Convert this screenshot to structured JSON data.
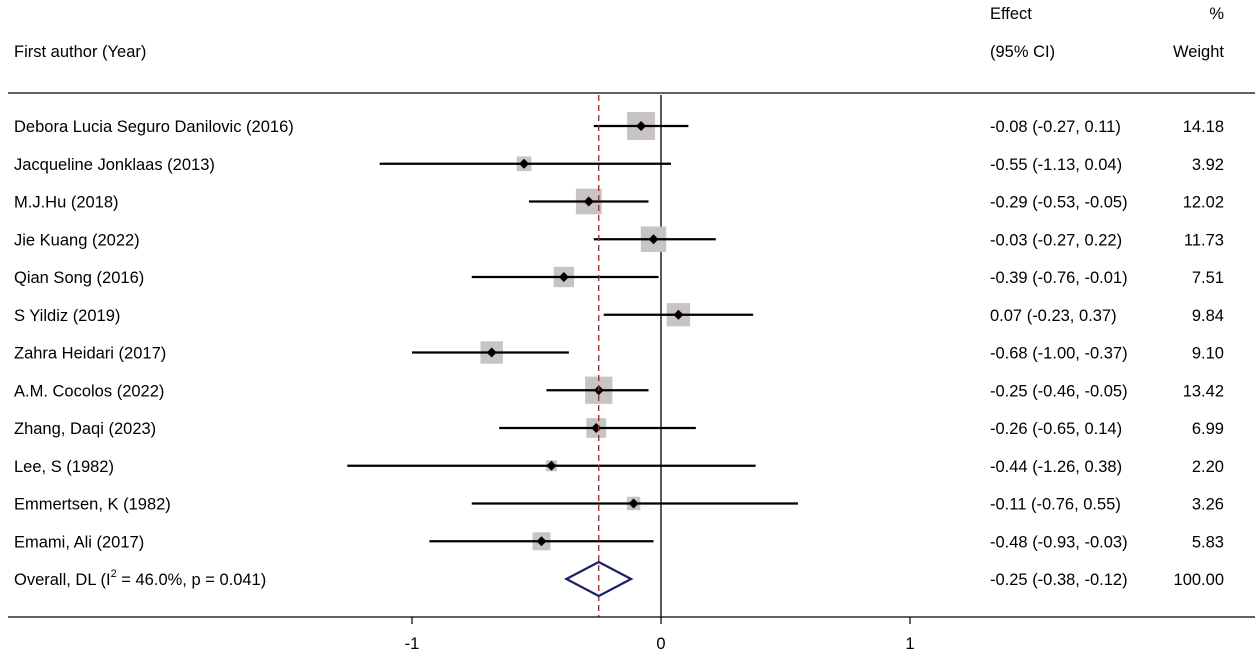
{
  "chart_data": {
    "type": "forest",
    "headers": {
      "author": "First author (Year)",
      "effect_line1": "Effect",
      "effect_line2": "(95% CI)",
      "weight_line1": "%",
      "weight_line2": "Weight"
    },
    "studies": [
      {
        "label": "Debora Lucia Seguro Danilovic (2016)",
        "effect": -0.08,
        "lower": -0.27,
        "upper": 0.11,
        "ci_text": "-0.08 (-0.27, 0.11)",
        "weight": 14.18,
        "weight_text": "14.18"
      },
      {
        "label": "Jacqueline Jonklaas (2013)",
        "effect": -0.55,
        "lower": -1.13,
        "upper": 0.04,
        "ci_text": "-0.55 (-1.13, 0.04)",
        "weight": 3.92,
        "weight_text": "3.92"
      },
      {
        "label": "M.J.Hu (2018)",
        "effect": -0.29,
        "lower": -0.53,
        "upper": -0.05,
        "ci_text": "-0.29 (-0.53, -0.05)",
        "weight": 12.02,
        "weight_text": "12.02"
      },
      {
        "label": "Jie Kuang (2022)",
        "effect": -0.03,
        "lower": -0.27,
        "upper": 0.22,
        "ci_text": "-0.03 (-0.27, 0.22)",
        "weight": 11.73,
        "weight_text": "11.73"
      },
      {
        "label": "Qian Song (2016)",
        "effect": -0.39,
        "lower": -0.76,
        "upper": -0.01,
        "ci_text": "-0.39 (-0.76, -0.01)",
        "weight": 7.51,
        "weight_text": "7.51"
      },
      {
        "label": "S Yildiz (2019)",
        "effect": 0.07,
        "lower": -0.23,
        "upper": 0.37,
        "ci_text": "0.07 (-0.23, 0.37)",
        "weight": 9.84,
        "weight_text": "9.84"
      },
      {
        "label": "Zahra Heidari (2017)",
        "effect": -0.68,
        "lower": -1.0,
        "upper": -0.37,
        "ci_text": "-0.68 (-1.00, -0.37)",
        "weight": 9.1,
        "weight_text": "9.10"
      },
      {
        "label": "A.M. Cocolos (2022)",
        "effect": -0.25,
        "lower": -0.46,
        "upper": -0.05,
        "ci_text": "-0.25 (-0.46, -0.05)",
        "weight": 13.42,
        "weight_text": "13.42"
      },
      {
        "label": "Zhang, Daqi (2023)",
        "effect": -0.26,
        "lower": -0.65,
        "upper": 0.14,
        "ci_text": "-0.26 (-0.65, 0.14)",
        "weight": 6.99,
        "weight_text": "6.99"
      },
      {
        "label": "Lee, S (1982)",
        "effect": -0.44,
        "lower": -1.26,
        "upper": 0.38,
        "ci_text": "-0.44 (-1.26, 0.38)",
        "weight": 2.2,
        "weight_text": "2.20"
      },
      {
        "label": "Emmertsen, K (1982)",
        "effect": -0.11,
        "lower": -0.76,
        "upper": 0.55,
        "ci_text": "-0.11 (-0.76, 0.55)",
        "weight": 3.26,
        "weight_text": "3.26"
      },
      {
        "label": "Emami, Ali (2017)",
        "effect": -0.48,
        "lower": -0.93,
        "upper": -0.03,
        "ci_text": "-0.48 (-0.93, -0.03)",
        "weight": 5.83,
        "weight_text": "5.83"
      }
    ],
    "overall": {
      "label_prefix": "Overall, DL (I",
      "label_sup": "2",
      "label_suffix": " = 46.0%, p = 0.041)",
      "effect": -0.25,
      "lower": -0.38,
      "upper": -0.12,
      "ci_text": "-0.25 (-0.38, -0.12)",
      "weight_text": "100.00"
    },
    "x_ticks": [
      {
        "value": -1,
        "label": "-1"
      },
      {
        "value": 0,
        "label": "0"
      },
      {
        "value": 1,
        "label": "1"
      }
    ],
    "null_line": 0,
    "overall_line": -0.25,
    "colors": {
      "box": "#c8c4c4",
      "diamond": "#1a1f6b",
      "overall_line": "#a0262b",
      "ci_line": "#000000"
    }
  }
}
